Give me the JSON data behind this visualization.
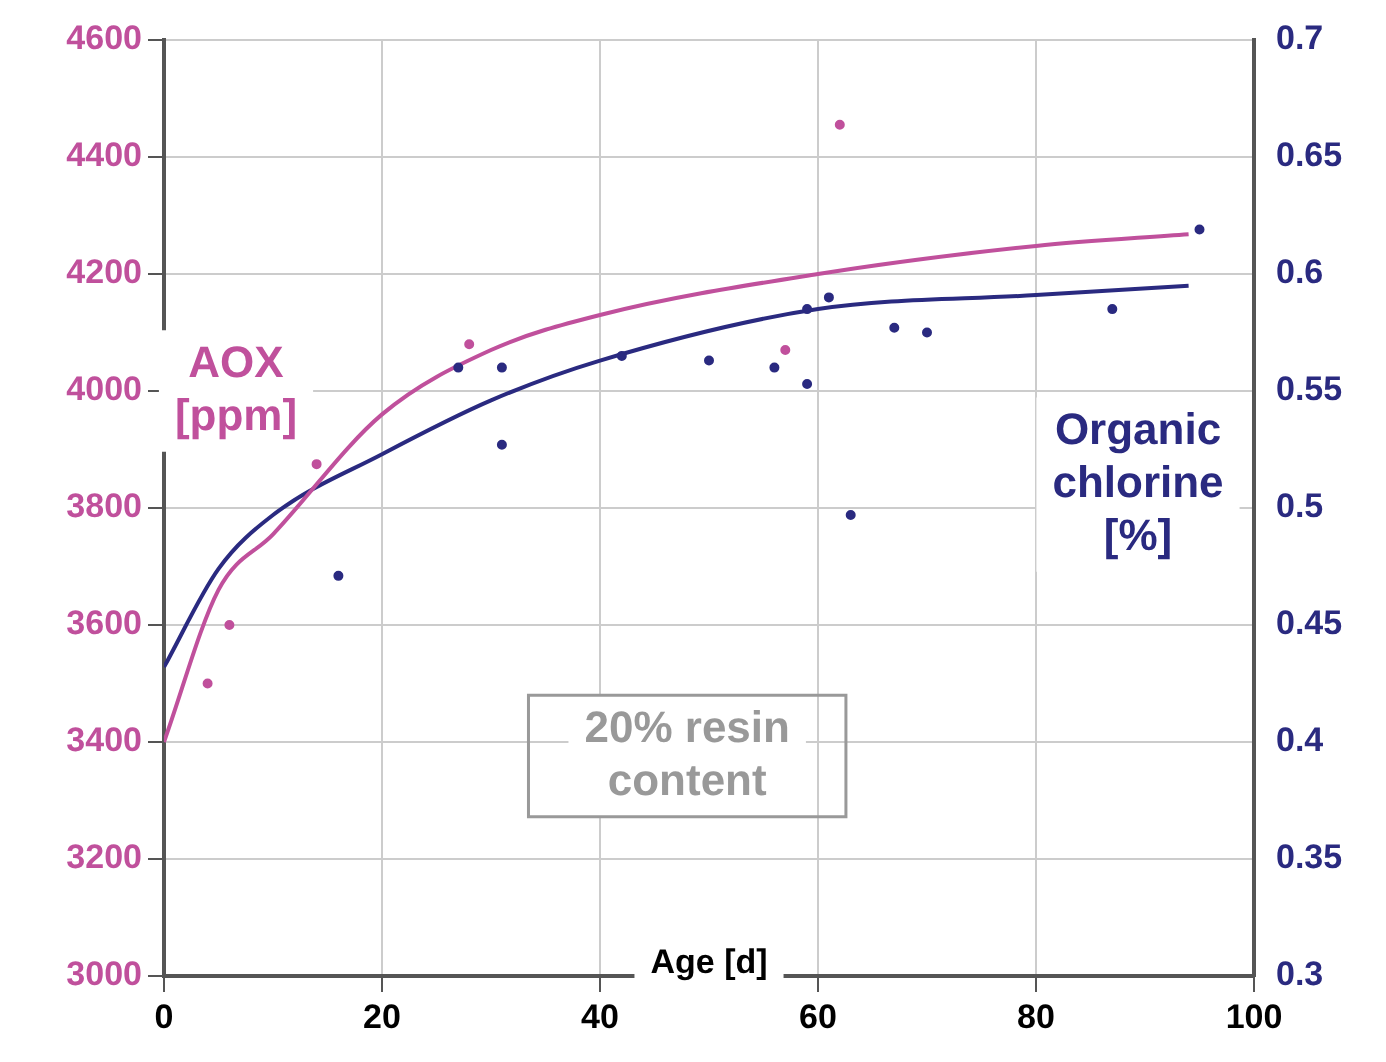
{
  "chart_data": {
    "type": "scatter",
    "xlabel": "Age [d]",
    "ylabel": "AOX\n[ppm]",
    "y2label": "Organic\nchlorine\n[%]",
    "annotations": [
      "20% resin\ncontent"
    ],
    "xlim": [
      0,
      100
    ],
    "xticks": [
      0,
      20,
      40,
      60,
      80,
      100
    ],
    "ylim": [
      3000,
      4600
    ],
    "yticks": [
      3000,
      3200,
      3400,
      3600,
      3800,
      4000,
      4200,
      4400,
      4600
    ],
    "y2lim": [
      0.3,
      0.7
    ],
    "y2ticks": [
      {
        "value": 0.3,
        "label": "0.3"
      },
      {
        "value": 0.35,
        "label": "0.35"
      },
      {
        "value": 0.4,
        "label": "0.4"
      },
      {
        "value": 0.45,
        "label": "0.45"
      },
      {
        "value": 0.5,
        "label": "0.5"
      },
      {
        "value": 0.55,
        "label": "0.55"
      },
      {
        "value": 0.6,
        "label": "0.6"
      },
      {
        "value": 0.65,
        "label": "0.65"
      },
      {
        "value": 0.7,
        "label": "0.7"
      }
    ],
    "grid": true,
    "series": [
      {
        "marker": "circle",
        "color": "#c0509c",
        "x": [
          4,
          6,
          14,
          28,
          57,
          62
        ],
        "values": [
          3500,
          3600,
          3875,
          4080,
          4070,
          4455
        ]
      },
      {
        "marker": "circle",
        "axis": "y2",
        "color": "#2a2a80",
        "x": [
          16,
          27,
          31,
          31,
          42,
          50,
          56,
          59,
          59,
          61,
          63,
          67,
          70,
          87,
          95
        ],
        "values": [
          0.471,
          0.56,
          0.56,
          0.527,
          0.565,
          0.563,
          0.56,
          0.553,
          0.585,
          0.59,
          0.497,
          0.577,
          0.575,
          0.585,
          0.619
        ]
      },
      {
        "type": "line",
        "marker": "none",
        "color": "#c0509c",
        "x": [
          0,
          5,
          10,
          20,
          30,
          40,
          60,
          80,
          94
        ],
        "values": [
          3400,
          3660,
          3755,
          3960,
          4070,
          4130,
          4200,
          4248,
          4268
        ]
      },
      {
        "type": "line",
        "marker": "none",
        "axis": "y2",
        "color": "#2a2a80",
        "x": [
          0,
          5,
          10,
          20,
          30,
          40,
          60,
          80,
          94
        ],
        "values": [
          0.432,
          0.474,
          0.497,
          0.523,
          0.546,
          0.563,
          0.585,
          0.591,
          0.595
        ]
      }
    ]
  }
}
